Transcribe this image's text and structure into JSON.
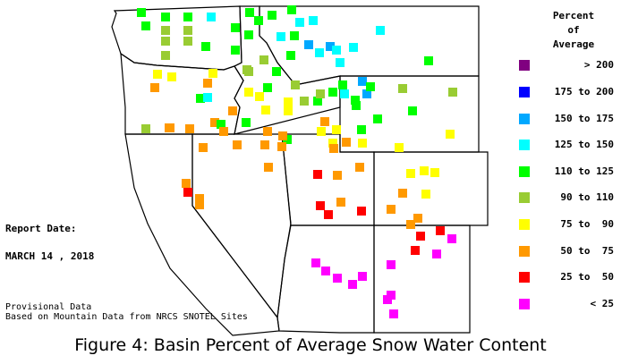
{
  "legend": {
    "title_lines": [
      "Percent",
      "of",
      "Average"
    ],
    "items": [
      {
        "label": "> 200",
        "color": "#800080"
      },
      {
        "label": "175 to 200",
        "color": "#0000ff"
      },
      {
        "label": "150 to 175",
        "color": "#00a8ff"
      },
      {
        "label": "125 to 150",
        "color": "#00ffff"
      },
      {
        "label": "110 to 125",
        "color": "#00ff00"
      },
      {
        "label": "90 to 110",
        "color": "#99cc33"
      },
      {
        "label": "75 to  90",
        "color": "#ffff00"
      },
      {
        "label": "50 to  75",
        "color": "#ff9900"
      },
      {
        "label": "25 to  50",
        "color": "#ff0000"
      },
      {
        "label": "< 25",
        "color": "#ff00ff"
      }
    ]
  },
  "report": {
    "label": "Report Date:",
    "date": "MARCH 14 , 2018"
  },
  "notes": {
    "line1": "Provisional Data",
    "line2": "Based on Mountain Data from NRCS SNOTEL Sites"
  },
  "caption": "Figure 4: Basin Percent of Average Snow Water Content"
}
